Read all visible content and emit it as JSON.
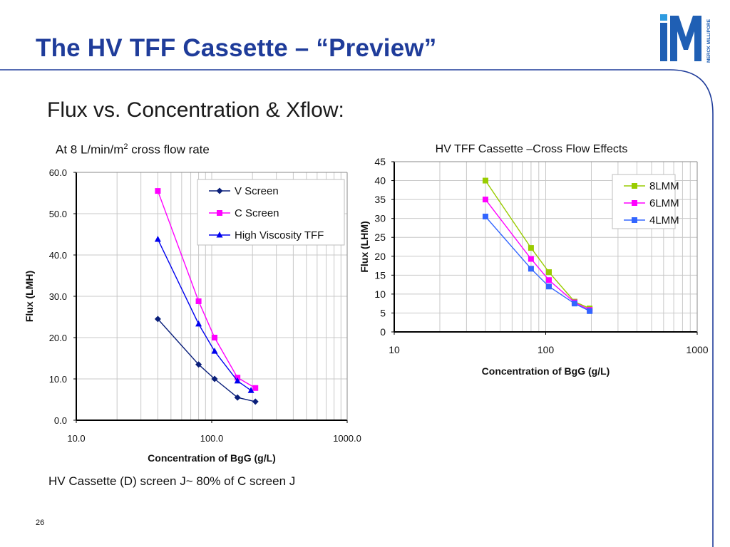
{
  "slide": {
    "title": "The HV TFF Cassette – “Preview”",
    "subtitle": "Flux vs. Concentration & Xflow:",
    "caption_left_main": "At 8 L/min/m",
    "caption_left_sup": "2",
    "caption_left_rest": " cross flow rate",
    "footnote": "HV Cassette (D) screen J~ 80% of C screen J",
    "page_number": "26",
    "logo_vertical_text": "MERCK MILLIPORE",
    "accent_color": "#1f3c9a"
  },
  "chart_data": [
    {
      "type": "line",
      "title": "",
      "xlabel": "Concentration of BgG (g/L)",
      "ylabel": "Flux (LMH)",
      "x_scale": "log",
      "xlim": [
        10,
        1000
      ],
      "ylim": [
        0,
        60
      ],
      "x_ticks": [
        10,
        100,
        1000
      ],
      "x_tick_labels": [
        "10.0",
        "100.0",
        "1000.0"
      ],
      "y_ticks": [
        0,
        10,
        20,
        30,
        40,
        50,
        60
      ],
      "y_tick_labels": [
        "0.0",
        "10.0",
        "20.0",
        "30.0",
        "40.0",
        "50.0",
        "60.0"
      ],
      "grid": true,
      "legend_position": "top-right",
      "series": [
        {
          "name": "V Screen",
          "color": "#0a1f7a",
          "marker": "diamond",
          "x": [
            40,
            80,
            105,
            155,
            210
          ],
          "y": [
            24.5,
            13.5,
            10.0,
            5.5,
            4.5
          ]
        },
        {
          "name": "C Screen",
          "color": "#ff00ff",
          "marker": "square",
          "x": [
            40,
            80,
            105,
            155,
            210
          ],
          "y": [
            55.5,
            28.8,
            20.0,
            10.3,
            7.8
          ]
        },
        {
          "name": "High Viscosity TFF",
          "color": "#0000ee",
          "marker": "triangle",
          "x": [
            40,
            80,
            105,
            155,
            195
          ],
          "y": [
            43.8,
            23.3,
            16.7,
            9.5,
            7.2
          ]
        }
      ]
    },
    {
      "type": "line",
      "title": "HV TFF Cassette –Cross Flow Effects",
      "xlabel": "Concentration of BgG (g/L)",
      "ylabel": "Flux (LHM)",
      "x_scale": "log",
      "xlim": [
        10,
        1000
      ],
      "ylim": [
        0,
        45
      ],
      "x_ticks": [
        10,
        100,
        1000
      ],
      "x_tick_labels": [
        "10",
        "100",
        "1000"
      ],
      "y_ticks": [
        0,
        5,
        10,
        15,
        20,
        25,
        30,
        35,
        40,
        45
      ],
      "y_tick_labels": [
        "0",
        "5",
        "10",
        "15",
        "20",
        "25",
        "30",
        "35",
        "40",
        "45"
      ],
      "grid": true,
      "legend_position": "top-right",
      "series": [
        {
          "name": "8LMM",
          "color": "#99cc00",
          "marker": "square",
          "x": [
            40,
            80,
            105,
            155,
            195
          ],
          "y": [
            40.0,
            22.2,
            15.8,
            8.0,
            6.2
          ]
        },
        {
          "name": "6LMM",
          "color": "#ff00ff",
          "marker": "square",
          "x": [
            40,
            80,
            105,
            155,
            195
          ],
          "y": [
            35.0,
            19.3,
            13.7,
            7.8,
            5.8
          ]
        },
        {
          "name": "4LMM",
          "color": "#3366ff",
          "marker": "square",
          "x": [
            40,
            80,
            105,
            155,
            195
          ],
          "y": [
            30.5,
            16.7,
            12.0,
            7.5,
            5.5
          ]
        }
      ]
    }
  ]
}
